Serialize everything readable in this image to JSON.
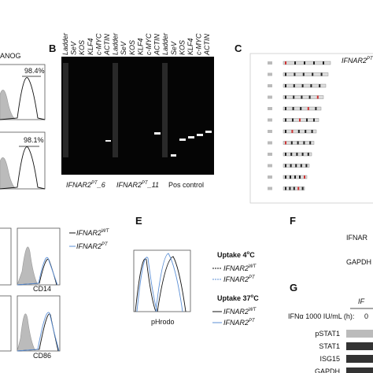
{
  "panel_a": {
    "marker": "ANOG",
    "gates": [
      "98.4%",
      "98.1%"
    ]
  },
  "panel_b": {
    "label": "B",
    "lanes": [
      "Ladder",
      "SeV",
      "KOS",
      "KLF4",
      "c-MYC",
      "ACTIN",
      "Ladder",
      "SeV",
      "KOS",
      "KLF4",
      "c-MYC",
      "ACTIN",
      "Ladder",
      "SeV",
      "KOS",
      "KLF4",
      "c-MYC",
      "ACTIN"
    ],
    "groups": [
      {
        "gene": "IFNAR2",
        "sup": "PT",
        "suffix": "_6"
      },
      {
        "gene": "IFNAR2",
        "sup": "PT",
        "suffix": "_11"
      },
      {
        "text": "Pos control"
      }
    ]
  },
  "panel_c": {
    "label": "C",
    "gene": "IFNAR2",
    "sup": "PT"
  },
  "panel_d": {
    "legend": [
      {
        "gene": "IFNAR2",
        "sup": "WT"
      },
      {
        "gene": "IFNAR2",
        "sup": "PT"
      }
    ],
    "markers": [
      "CD14",
      "CD86"
    ]
  },
  "panel_e": {
    "label": "E",
    "axis": "pHrodo",
    "groups": [
      {
        "title": "Uptake 4",
        "sup": "o",
        "unit": "C",
        "legend": [
          {
            "gene": "IFNAR2",
            "sup": "WT"
          },
          {
            "gene": "IFNAR2",
            "sup": "PT"
          }
        ]
      },
      {
        "title": "Uptake 37",
        "sup": "o",
        "unit": "C",
        "legend": [
          {
            "gene": "IFNAR2",
            "sup": "WT"
          },
          {
            "gene": "IFNAR2",
            "sup": "PT"
          }
        ]
      }
    ]
  },
  "panel_f": {
    "label": "F",
    "rows": [
      "IFNAR",
      "GAPDH"
    ]
  },
  "panel_g": {
    "label": "G",
    "header": "IF",
    "treatment": "IFNα 1000 IU/mL (h):",
    "time": "0",
    "rows": [
      "pSTAT1",
      "STAT1",
      "ISG15",
      "GAPDH"
    ]
  }
}
